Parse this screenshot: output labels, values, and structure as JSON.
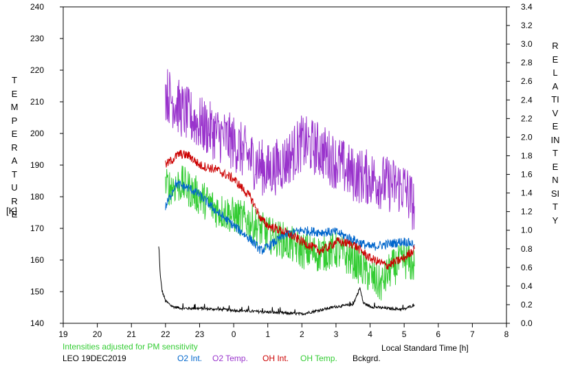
{
  "chart_data": {
    "type": "line",
    "xlabel": "Local Standard Time [h]",
    "ylabel_left": "TEMPERATURE",
    "ylabel_left_unit": "[K]",
    "ylabel_right": "RELATIVE INTENSITY",
    "x_ticks": [
      "19",
      "20",
      "21",
      "22",
      "23",
      "0",
      "1",
      "2",
      "3",
      "4",
      "5",
      "6",
      "7",
      "8"
    ],
    "x_range_hours_since_19": [
      0,
      13
    ],
    "ylim_left": [
      140,
      240
    ],
    "left_ticks": [
      "140",
      "150",
      "160",
      "170",
      "180",
      "190",
      "200",
      "210",
      "220",
      "230",
      "240"
    ],
    "ylim_right": [
      0.0,
      3.4
    ],
    "right_ticks": [
      "0.0",
      "0.2",
      "0.4",
      "0.6",
      "0.8",
      "1.0",
      "1.2",
      "1.4",
      "1.6",
      "1.8",
      "2.0",
      "2.2",
      "2.4",
      "2.6",
      "2.8",
      "3.0",
      "3.2",
      "3.4"
    ],
    "grid": false,
    "note": "Intensities adjusted for PM sensitivity",
    "station": "LEO 19DEC2019",
    "series": [
      {
        "name": "O2 Int.",
        "axis": "right",
        "color": "#0066cc",
        "anchors": [
          [
            22.0,
            1.25
          ],
          [
            22.3,
            1.5
          ],
          [
            22.7,
            1.45
          ],
          [
            23.0,
            1.38
          ],
          [
            23.5,
            1.2
          ],
          [
            0.0,
            1.05
          ],
          [
            0.5,
            0.9
          ],
          [
            0.8,
            0.78
          ],
          [
            1.0,
            0.82
          ],
          [
            1.5,
            0.95
          ],
          [
            2.0,
            1.0
          ],
          [
            2.5,
            0.98
          ],
          [
            3.0,
            0.98
          ],
          [
            3.5,
            0.9
          ],
          [
            4.0,
            0.82
          ],
          [
            4.5,
            0.85
          ],
          [
            5.0,
            0.88
          ],
          [
            5.3,
            0.85
          ]
        ]
      },
      {
        "name": "O2 Temp.",
        "axis": "left",
        "color": "#9933cc",
        "anchors": [
          [
            22.0,
            213
          ],
          [
            22.5,
            207
          ],
          [
            23.0,
            203
          ],
          [
            23.5,
            200
          ],
          [
            0.0,
            197
          ],
          [
            0.5,
            192
          ],
          [
            1.0,
            188
          ],
          [
            1.5,
            191
          ],
          [
            2.0,
            197
          ],
          [
            2.5,
            195
          ],
          [
            3.0,
            191
          ],
          [
            3.5,
            187
          ],
          [
            4.0,
            186
          ],
          [
            4.5,
            184
          ],
          [
            5.0,
            183
          ],
          [
            5.3,
            177
          ]
        ]
      },
      {
        "name": "OH Int.",
        "axis": "right",
        "color": "#cc0000",
        "anchors": [
          [
            22.0,
            1.7
          ],
          [
            22.4,
            1.82
          ],
          [
            22.7,
            1.8
          ],
          [
            23.0,
            1.7
          ],
          [
            23.5,
            1.65
          ],
          [
            0.0,
            1.55
          ],
          [
            0.5,
            1.35
          ],
          [
            0.8,
            1.12
          ],
          [
            1.0,
            1.05
          ],
          [
            1.5,
            0.98
          ],
          [
            2.0,
            0.88
          ],
          [
            2.5,
            0.78
          ],
          [
            2.8,
            0.82
          ],
          [
            3.0,
            0.88
          ],
          [
            3.5,
            0.85
          ],
          [
            4.0,
            0.7
          ],
          [
            4.5,
            0.62
          ],
          [
            5.0,
            0.7
          ],
          [
            5.3,
            0.8
          ]
        ]
      },
      {
        "name": "OH Temp.",
        "axis": "left",
        "color": "#33cc33",
        "anchors": [
          [
            22.0,
            183
          ],
          [
            22.5,
            184
          ],
          [
            23.0,
            180
          ],
          [
            23.5,
            176
          ],
          [
            0.0,
            174
          ],
          [
            0.5,
            172
          ],
          [
            1.0,
            168
          ],
          [
            1.5,
            166
          ],
          [
            2.0,
            163
          ],
          [
            2.5,
            162
          ],
          [
            3.0,
            163
          ],
          [
            3.5,
            160
          ],
          [
            4.0,
            155
          ],
          [
            4.3,
            152
          ],
          [
            4.6,
            157
          ],
          [
            5.0,
            160
          ],
          [
            5.3,
            158
          ]
        ]
      },
      {
        "name": "Bckgrd.",
        "axis": "right",
        "color": "#000000",
        "anchors": [
          [
            21.8,
            0.82
          ],
          [
            21.85,
            0.5
          ],
          [
            21.9,
            0.35
          ],
          [
            22.0,
            0.24
          ],
          [
            22.2,
            0.18
          ],
          [
            22.5,
            0.16
          ],
          [
            23.0,
            0.16
          ],
          [
            0.0,
            0.14
          ],
          [
            1.0,
            0.12
          ],
          [
            2.0,
            0.1
          ],
          [
            2.5,
            0.14
          ],
          [
            3.0,
            0.18
          ],
          [
            3.5,
            0.2
          ],
          [
            3.7,
            0.38
          ],
          [
            3.8,
            0.22
          ],
          [
            4.0,
            0.18
          ],
          [
            4.5,
            0.16
          ],
          [
            5.0,
            0.15
          ],
          [
            5.3,
            0.2
          ]
        ]
      }
    ]
  },
  "legend": {
    "note_color": "#33cc33",
    "items": [
      {
        "key": "station",
        "color": "#000000"
      },
      {
        "key": "o2int",
        "label": "O2 Int.",
        "color": "#0066cc"
      },
      {
        "key": "o2temp",
        "label": "O2 Temp.",
        "color": "#9933cc"
      },
      {
        "key": "ohint",
        "label": "OH Int.",
        "color": "#cc0000"
      },
      {
        "key": "ohtemp",
        "label": "OH Temp.",
        "color": "#33cc33"
      },
      {
        "key": "bckgrd",
        "label": "Bckgrd.",
        "color": "#000000"
      }
    ]
  }
}
